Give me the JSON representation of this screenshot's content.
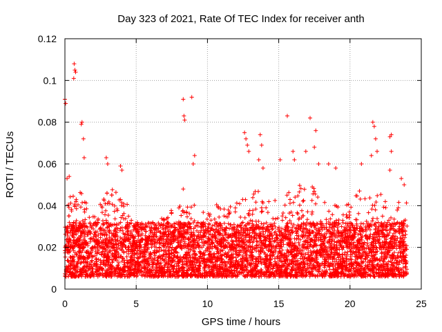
{
  "chart_data": {
    "type": "scatter",
    "title": "Day 323 of 2021, Rate Of TEC Index for receiver anth",
    "xlabel": "GPS time / hours",
    "ylabel": "ROTI / TECUs",
    "xlim": [
      0,
      25
    ],
    "ylim": [
      0,
      0.12
    ],
    "xticks": [
      0,
      5,
      10,
      15,
      20,
      25
    ],
    "yticks": [
      0,
      0.02,
      0.04,
      0.06,
      0.08,
      0.1,
      0.12
    ],
    "xtick_labels": [
      "0",
      "5",
      "10",
      "15",
      "20",
      "25"
    ],
    "ytick_labels": [
      "0",
      "0.02",
      "0.04",
      "0.06",
      "0.08",
      "0.1",
      "0.12"
    ],
    "grid": true,
    "marker": "+",
    "color": "#ff0000",
    "data_range_x": [
      0,
      24
    ],
    "bulk_range_y": [
      0.005,
      0.035
    ],
    "notable_points": [
      {
        "x": 0.0,
        "y": 0.091
      },
      {
        "x": 0.05,
        "y": 0.089
      },
      {
        "x": 0.65,
        "y": 0.108
      },
      {
        "x": 0.7,
        "y": 0.105
      },
      {
        "x": 0.62,
        "y": 0.101
      },
      {
        "x": 0.75,
        "y": 0.104
      },
      {
        "x": 1.2,
        "y": 0.08
      },
      {
        "x": 1.15,
        "y": 0.079
      },
      {
        "x": 1.3,
        "y": 0.072
      },
      {
        "x": 1.35,
        "y": 0.063
      },
      {
        "x": 0.3,
        "y": 0.054
      },
      {
        "x": 0.15,
        "y": 0.053
      },
      {
        "x": 2.9,
        "y": 0.063
      },
      {
        "x": 3.0,
        "y": 0.06
      },
      {
        "x": 3.9,
        "y": 0.059
      },
      {
        "x": 4.0,
        "y": 0.057
      },
      {
        "x": 8.3,
        "y": 0.091
      },
      {
        "x": 8.35,
        "y": 0.083
      },
      {
        "x": 8.4,
        "y": 0.081
      },
      {
        "x": 8.3,
        "y": 0.048
      },
      {
        "x": 8.9,
        "y": 0.092
      },
      {
        "x": 9.1,
        "y": 0.064
      },
      {
        "x": 9.0,
        "y": 0.06
      },
      {
        "x": 12.6,
        "y": 0.075
      },
      {
        "x": 12.7,
        "y": 0.072
      },
      {
        "x": 12.8,
        "y": 0.069
      },
      {
        "x": 12.9,
        "y": 0.066
      },
      {
        "x": 13.7,
        "y": 0.074
      },
      {
        "x": 13.8,
        "y": 0.069
      },
      {
        "x": 13.6,
        "y": 0.062
      },
      {
        "x": 13.9,
        "y": 0.058
      },
      {
        "x": 15.6,
        "y": 0.083
      },
      {
        "x": 15.1,
        "y": 0.062
      },
      {
        "x": 16.0,
        "y": 0.066
      },
      {
        "x": 16.1,
        "y": 0.062
      },
      {
        "x": 16.9,
        "y": 0.066
      },
      {
        "x": 17.2,
        "y": 0.082
      },
      {
        "x": 17.6,
        "y": 0.076
      },
      {
        "x": 17.5,
        "y": 0.068
      },
      {
        "x": 17.8,
        "y": 0.06
      },
      {
        "x": 18.5,
        "y": 0.06
      },
      {
        "x": 19.0,
        "y": 0.058
      },
      {
        "x": 20.8,
        "y": 0.06
      },
      {
        "x": 21.5,
        "y": 0.064
      },
      {
        "x": 21.6,
        "y": 0.08
      },
      {
        "x": 21.7,
        "y": 0.078
      },
      {
        "x": 21.8,
        "y": 0.072
      },
      {
        "x": 21.9,
        "y": 0.066
      },
      {
        "x": 22.9,
        "y": 0.074
      },
      {
        "x": 22.8,
        "y": 0.073
      },
      {
        "x": 22.9,
        "y": 0.066
      },
      {
        "x": 22.8,
        "y": 0.057
      },
      {
        "x": 23.6,
        "y": 0.053
      },
      {
        "x": 23.8,
        "y": 0.05
      }
    ],
    "envelope": [
      {
        "x": 0,
        "peak": 0.045
      },
      {
        "x": 1,
        "peak": 0.048
      },
      {
        "x": 2,
        "peak": 0.036
      },
      {
        "x": 3,
        "peak": 0.048
      },
      {
        "x": 4,
        "peak": 0.05
      },
      {
        "x": 5,
        "peak": 0.032
      },
      {
        "x": 6,
        "peak": 0.03
      },
      {
        "x": 7,
        "peak": 0.036
      },
      {
        "x": 8,
        "peak": 0.04
      },
      {
        "x": 9,
        "peak": 0.044
      },
      {
        "x": 10,
        "peak": 0.038
      },
      {
        "x": 11,
        "peak": 0.042
      },
      {
        "x": 12,
        "peak": 0.044
      },
      {
        "x": 13,
        "peak": 0.05
      },
      {
        "x": 14,
        "peak": 0.048
      },
      {
        "x": 15,
        "peak": 0.042
      },
      {
        "x": 16,
        "peak": 0.05
      },
      {
        "x": 17,
        "peak": 0.052
      },
      {
        "x": 18,
        "peak": 0.046
      },
      {
        "x": 19,
        "peak": 0.04
      },
      {
        "x": 20,
        "peak": 0.042
      },
      {
        "x": 21,
        "peak": 0.05
      },
      {
        "x": 22,
        "peak": 0.048
      },
      {
        "x": 23,
        "peak": 0.04
      },
      {
        "x": 24,
        "peak": 0.044
      }
    ]
  }
}
